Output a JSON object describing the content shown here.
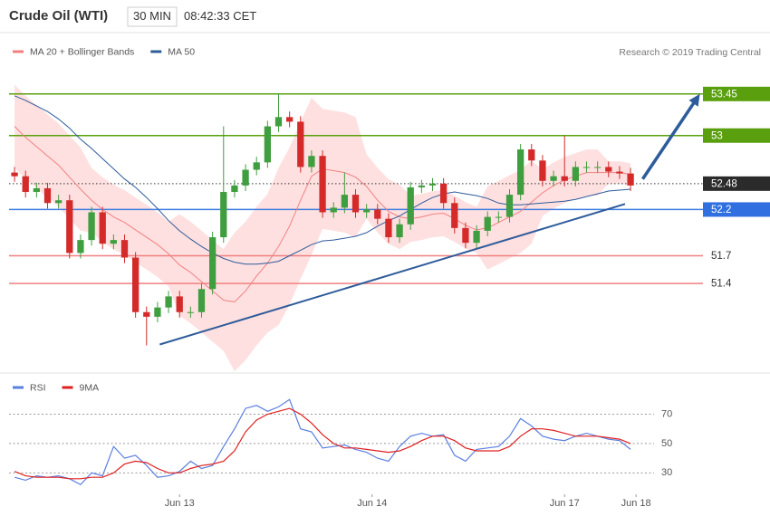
{
  "header": {
    "title": "Crude Oil (WTI)",
    "interval": "30 MIN",
    "time": "08:42:33 CET"
  },
  "chart_data": [
    {
      "type": "candlestick",
      "credit": "Research © 2019 Trading Central",
      "up_color": "#3f9e3f",
      "down_color": "#d42a2a",
      "x": [
        0,
        1,
        2,
        3,
        4,
        5,
        6,
        7,
        8,
        9,
        10,
        11,
        12,
        13,
        14,
        15,
        16,
        17,
        18,
        19,
        20,
        21,
        22,
        23,
        24,
        25,
        26,
        27,
        28,
        29,
        30,
        31,
        32,
        33,
        34,
        35,
        36,
        37,
        38,
        39,
        40,
        41,
        42,
        43,
        44,
        45,
        46,
        47,
        48,
        49,
        50,
        51,
        52,
        53,
        54,
        55,
        56
      ],
      "open": [
        52.6,
        52.56,
        52.39,
        52.43,
        52.27,
        52.3,
        51.73,
        51.87,
        52.17,
        51.83,
        51.87,
        51.68,
        51.09,
        51.04,
        51.14,
        51.26,
        51.09,
        51.09,
        51.34,
        51.9,
        52.39,
        52.46,
        52.63,
        52.71,
        53.1,
        53.2,
        53.15,
        52.66,
        52.78,
        52.17,
        52.22,
        52.36,
        52.17,
        52.2,
        52.1,
        51.9,
        52.04,
        52.44,
        52.46,
        52.48,
        52.27,
        52.0,
        51.84,
        51.97,
        52.12,
        52.12,
        52.36,
        52.85,
        52.73,
        52.51,
        52.56,
        52.51,
        52.66,
        52.66,
        52.66,
        52.61,
        52.59
      ],
      "high": [
        52.66,
        52.62,
        52.49,
        52.49,
        52.36,
        52.36,
        51.93,
        52.23,
        52.23,
        51.93,
        51.93,
        51.74,
        51.15,
        51.2,
        51.32,
        51.32,
        51.15,
        51.4,
        51.96,
        53.1,
        52.52,
        52.69,
        52.77,
        53.16,
        53.45,
        53.26,
        53.21,
        52.84,
        52.84,
        52.28,
        52.6,
        52.42,
        52.26,
        52.26,
        52.16,
        52.1,
        52.5,
        52.52,
        52.54,
        52.54,
        52.33,
        52.06,
        52.03,
        52.18,
        52.18,
        52.42,
        52.91,
        52.91,
        52.79,
        52.62,
        53.0,
        52.72,
        52.72,
        52.72,
        52.72,
        52.67,
        52.65
      ],
      "low": [
        52.5,
        52.33,
        52.33,
        52.21,
        52.21,
        51.67,
        51.67,
        51.81,
        51.77,
        51.77,
        51.62,
        51.03,
        50.73,
        50.98,
        51.08,
        51.03,
        51.03,
        51.03,
        51.28,
        51.84,
        52.33,
        52.4,
        52.57,
        52.65,
        53.04,
        53.09,
        52.6,
        52.6,
        52.11,
        52.11,
        52.16,
        52.11,
        52.11,
        52.04,
        51.84,
        51.84,
        51.98,
        52.38,
        52.4,
        52.21,
        51.94,
        51.78,
        51.78,
        51.91,
        52.06,
        52.06,
        52.3,
        52.67,
        52.45,
        52.45,
        52.45,
        52.45,
        52.6,
        52.6,
        52.55,
        52.53,
        52.4
      ],
      "close": [
        52.56,
        52.39,
        52.43,
        52.27,
        52.3,
        51.73,
        51.87,
        52.17,
        51.83,
        51.87,
        51.68,
        51.09,
        51.04,
        51.14,
        51.26,
        51.09,
        51.09,
        51.34,
        51.9,
        52.39,
        52.46,
        52.63,
        52.71,
        53.1,
        53.2,
        53.15,
        52.66,
        52.78,
        52.17,
        52.22,
        52.36,
        52.17,
        52.2,
        52.1,
        51.9,
        52.04,
        52.44,
        52.46,
        52.48,
        52.27,
        52.0,
        51.84,
        51.97,
        52.12,
        52.12,
        52.36,
        52.85,
        52.73,
        52.51,
        52.56,
        52.51,
        52.66,
        52.66,
        52.66,
        52.61,
        52.59,
        52.46
      ],
      "series": [
        {
          "name": "MA 20 + Bollinger Bands",
          "color": "#f08080",
          "values": [
            53.1,
            52.98,
            52.88,
            52.78,
            52.68,
            52.55,
            52.42,
            52.3,
            52.2,
            52.12,
            52.06,
            51.98,
            51.9,
            51.82,
            51.72,
            51.6,
            51.52,
            51.42,
            51.32,
            51.22,
            51.2,
            51.32,
            51.48,
            51.62,
            51.8,
            52.02,
            52.3,
            52.56,
            52.64,
            52.62,
            52.6,
            52.55,
            52.45,
            52.3,
            52.18,
            52.12,
            52.1,
            52.12,
            52.15,
            52.16,
            52.1,
            52.03,
            51.98,
            52.0,
            52.06,
            52.12,
            52.18,
            52.28,
            52.38,
            52.46,
            52.52,
            52.56,
            52.6,
            52.6,
            52.6,
            52.6,
            52.58
          ]
        },
        {
          "name": "MA 50",
          "color": "#2e5b9a",
          "values": [
            53.43,
            53.38,
            53.32,
            53.26,
            53.18,
            53.08,
            52.96,
            52.86,
            52.75,
            52.64,
            52.53,
            52.44,
            52.33,
            52.21,
            52.08,
            51.97,
            51.88,
            51.8,
            51.73,
            51.67,
            51.63,
            51.61,
            51.61,
            51.62,
            51.64,
            51.7,
            51.76,
            51.82,
            51.86,
            51.87,
            51.89,
            51.91,
            51.95,
            52.02,
            52.08,
            52.13,
            52.2,
            52.27,
            52.33,
            52.37,
            52.39,
            52.37,
            52.35,
            52.32,
            52.27,
            52.25,
            52.25,
            52.26,
            52.27,
            52.28,
            52.29,
            52.31,
            52.34,
            52.37,
            52.4,
            52.41,
            52.42
          ]
        }
      ],
      "bands": {
        "color": "#ffd6d6",
        "upper": [
          53.55,
          53.43,
          53.33,
          53.23,
          53.13,
          53.0,
          52.87,
          52.65,
          52.55,
          52.47,
          52.41,
          52.33,
          52.25,
          52.17,
          52.07,
          52.15,
          52.07,
          51.97,
          51.87,
          51.77,
          51.95,
          52.07,
          52.23,
          52.37,
          52.65,
          52.87,
          53.15,
          53.41,
          53.29,
          53.27,
          53.25,
          53.2,
          52.8,
          52.65,
          52.53,
          52.47,
          52.35,
          52.37,
          52.4,
          52.41,
          52.35,
          52.28,
          52.23,
          52.45,
          52.51,
          52.57,
          52.63,
          52.73,
          52.63,
          52.71,
          52.77,
          52.81,
          52.85,
          52.85,
          52.72,
          52.72,
          52.7
        ],
        "lower": [
          52.65,
          52.53,
          52.43,
          52.33,
          52.23,
          52.1,
          51.97,
          51.95,
          51.85,
          51.77,
          51.71,
          51.63,
          51.55,
          51.47,
          51.37,
          51.05,
          50.97,
          50.87,
          50.77,
          50.67,
          50.45,
          50.57,
          50.73,
          50.87,
          50.95,
          51.17,
          51.45,
          51.71,
          51.99,
          51.97,
          51.95,
          51.9,
          52.1,
          51.95,
          51.83,
          51.77,
          51.85,
          51.87,
          51.9,
          51.91,
          51.85,
          51.78,
          51.73,
          51.55,
          51.61,
          51.67,
          51.73,
          51.83,
          52.13,
          52.21,
          52.27,
          52.31,
          52.35,
          52.35,
          52.48,
          52.48,
          52.46
        ]
      },
      "levels": [
        {
          "value": 53.45,
          "color": "#5aa00e",
          "tag_color": "#5aa00e"
        },
        {
          "value": 53.0,
          "color": "#5aa00e",
          "tag_color": "#5aa00e"
        },
        {
          "value": 52.48,
          "color": "#333333",
          "tag_color": "#2b2b2b",
          "style": "dotted"
        },
        {
          "value": 52.2,
          "color": "#3d7de0",
          "tag_color": "#2f6fe0"
        },
        {
          "value": 51.7,
          "color": "#f08080"
        },
        {
          "value": 51.4,
          "color": "#f08080"
        }
      ],
      "trend_line": {
        "color": "#2e5b9a",
        "x": [
          13.2,
          55.5
        ],
        "y": [
          50.74,
          52.26
        ]
      },
      "arrow": {
        "color": "#2e5b9a",
        "x": [
          57.1,
          62.3
        ],
        "y": [
          52.53,
          53.45
        ]
      },
      "xlim": [
        -0.5,
        62.5
      ],
      "ylim": [
        50.5,
        53.83
      ]
    },
    {
      "type": "line",
      "x": [
        0,
        1,
        2,
        3,
        4,
        5,
        6,
        7,
        8,
        9,
        10,
        11,
        12,
        13,
        14,
        15,
        16,
        17,
        18,
        19,
        20,
        21,
        22,
        23,
        24,
        25,
        26,
        27,
        28,
        29,
        30,
        31,
        32,
        33,
        34,
        35,
        36,
        37,
        38,
        39,
        40,
        41,
        42,
        43,
        44,
        45,
        46,
        47,
        48,
        49,
        50,
        51,
        52,
        53,
        54,
        55,
        56
      ],
      "series": [
        {
          "name": "RSI",
          "color": "#5b7fe0",
          "values": [
            27,
            25,
            28,
            27,
            28,
            26,
            22,
            30,
            28,
            48,
            40,
            42,
            35,
            27,
            28,
            31,
            38,
            33,
            35,
            48,
            60,
            74,
            76,
            72,
            75,
            80,
            60,
            58,
            47,
            48,
            49,
            46,
            44,
            40,
            38,
            48,
            55,
            57,
            55,
            56,
            42,
            38,
            46,
            47,
            48,
            55,
            67,
            62,
            55,
            53,
            52,
            55,
            57,
            55,
            53,
            52,
            46
          ]
        },
        {
          "name": "9MA",
          "color": "#e02020",
          "values": [
            31,
            28,
            27,
            27,
            27,
            26,
            26,
            27,
            27,
            30,
            36,
            38,
            37,
            33,
            30,
            30,
            33,
            35,
            36,
            38,
            45,
            58,
            66,
            70,
            72,
            74,
            70,
            64,
            56,
            50,
            47,
            47,
            46,
            45,
            44,
            45,
            48,
            52,
            55,
            55,
            52,
            47,
            45,
            45,
            45,
            48,
            55,
            60,
            60,
            59,
            57,
            55,
            55,
            55,
            54,
            53,
            50
          ]
        }
      ],
      "xlim": [
        -0.5,
        62.5
      ],
      "xticks": [
        {
          "value": 15,
          "label": "Jun 13"
        },
        {
          "value": 32.5,
          "label": "Jun 14"
        },
        {
          "value": 50,
          "label": "Jun 17"
        },
        {
          "value": 56.5,
          "label": "Jun 18"
        }
      ],
      "ylim": [
        16,
        87
      ],
      "yticks": [
        30,
        50,
        70
      ],
      "grid": true
    }
  ]
}
